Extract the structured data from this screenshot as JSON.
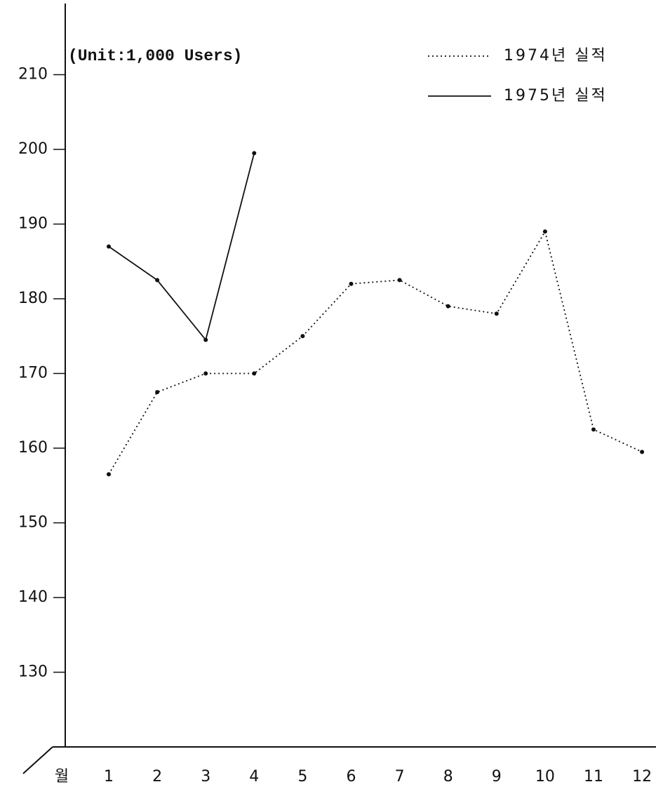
{
  "chart_data": {
    "type": "line",
    "subtitle": "(Unit:1,000 Users)",
    "x_label": "월",
    "categories": [
      "1",
      "2",
      "3",
      "4",
      "5",
      "6",
      "7",
      "8",
      "9",
      "10",
      "11",
      "12"
    ],
    "series": [
      {
        "name": "1974년 실적",
        "color": "#111111",
        "style": "dotted",
        "values": [
          156.5,
          167.5,
          170,
          170,
          175,
          182,
          182.5,
          179,
          178,
          189,
          162.5,
          159.5
        ]
      },
      {
        "name": "1975년 실적",
        "color": "#111111",
        "style": "solid",
        "values": [
          187,
          182.5,
          174.5,
          199.5,
          null,
          null,
          null,
          null,
          null,
          null,
          null,
          null
        ]
      }
    ],
    "ylim": [
      120,
      220
    ],
    "yticks": [
      130,
      140,
      150,
      160,
      170,
      180,
      190,
      200,
      210
    ],
    "grid": false,
    "legend": "upper right"
  }
}
